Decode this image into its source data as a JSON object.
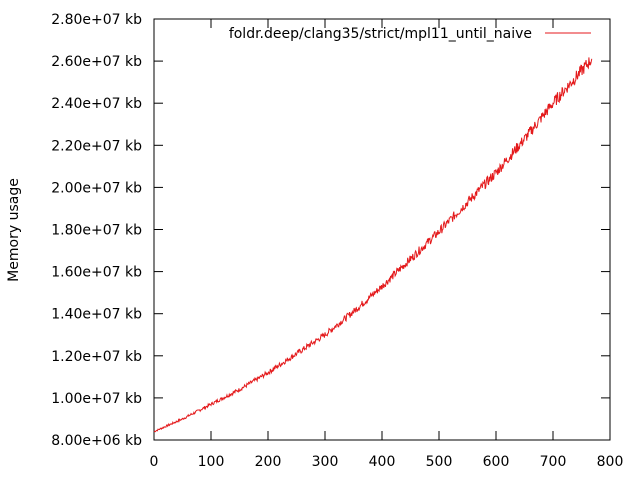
{
  "chart_data": {
    "type": "line",
    "title": "",
    "xlabel": "",
    "ylabel": "Memory usage",
    "xlim": [
      0,
      800
    ],
    "ylim": [
      8000000,
      28000000
    ],
    "x_ticks": [
      0,
      100,
      200,
      300,
      400,
      500,
      600,
      700,
      800
    ],
    "x_tick_labels": [
      "0",
      "100",
      "200",
      "300",
      "400",
      "500",
      "600",
      "700",
      "800"
    ],
    "y_ticks": [
      8000000,
      10000000,
      12000000,
      14000000,
      16000000,
      18000000,
      20000000,
      22000000,
      24000000,
      26000000,
      28000000
    ],
    "y_tick_labels": [
      "8.00e+06 kb",
      "1.00e+07 kb",
      "1.20e+07 kb",
      "1.40e+07 kb",
      "1.60e+07 kb",
      "1.80e+07 kb",
      "2.00e+07 kb",
      "2.20e+07 kb",
      "2.40e+07 kb",
      "2.60e+07 kb",
      "2.80e+07 kb"
    ],
    "grid": false,
    "legend_position": "top-right",
    "series": [
      {
        "name": "foldr.deep/clang35/strict/mpl11_until_naive",
        "color": "#e41a1c",
        "x": [
          0,
          50,
          100,
          150,
          200,
          250,
          300,
          350,
          400,
          450,
          500,
          550,
          600,
          650,
          700,
          768
        ],
        "y": [
          8400000,
          9000000,
          9700000,
          10400000,
          11200000,
          12100000,
          13000000,
          14100000,
          15300000,
          16600000,
          17900000,
          19300000,
          20700000,
          22300000,
          24000000,
          26100000
        ]
      }
    ]
  }
}
